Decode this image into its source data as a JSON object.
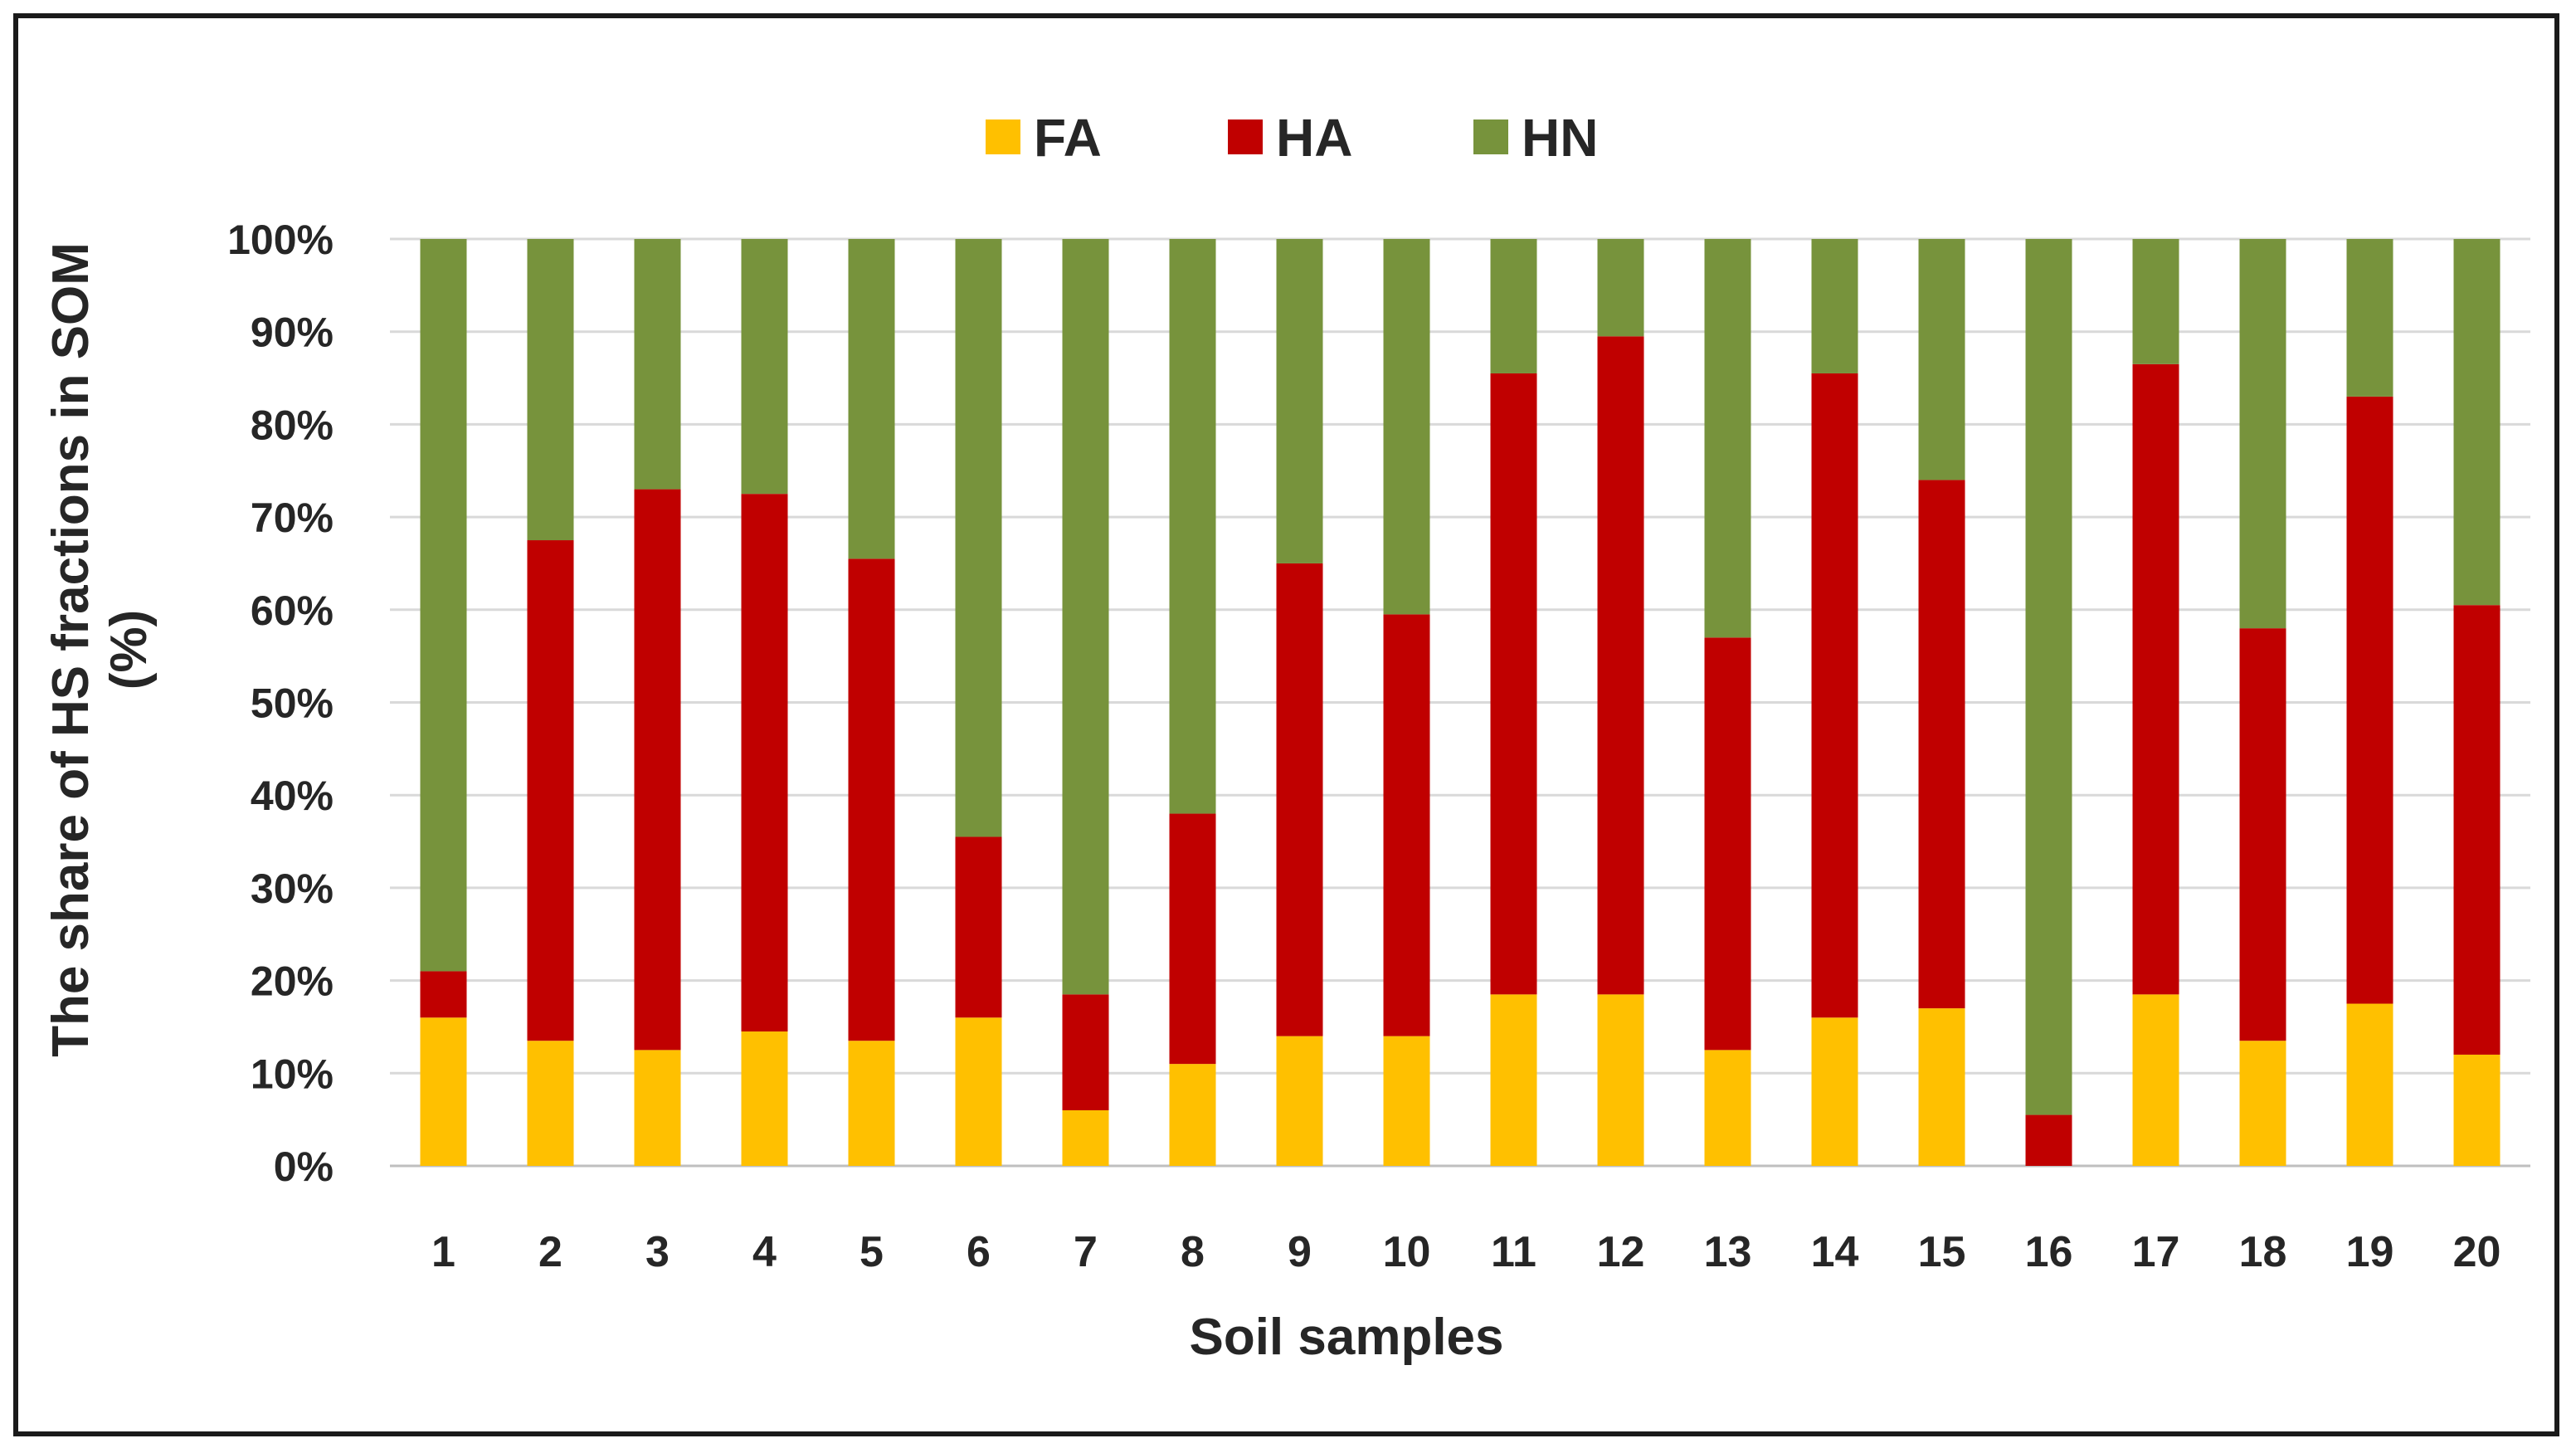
{
  "chart_data": {
    "type": "bar",
    "stacked": true,
    "percent_stacked": true,
    "title": "",
    "xlabel": "Soil samples",
    "ylabel": "The share of HS fractions in SOM (%)",
    "ylabel_lines": [
      "The share of HS fractions in SOM",
      "(%)"
    ],
    "ylim": [
      0,
      100
    ],
    "ytick_values": [
      0,
      10,
      20,
      30,
      40,
      50,
      60,
      70,
      80,
      90,
      100
    ],
    "ytick_labels": [
      "0%",
      "10%",
      "20%",
      "30%",
      "40%",
      "50%",
      "60%",
      "70%",
      "80%",
      "90%",
      "100%"
    ],
    "grid": true,
    "legend_position": "top-center",
    "categories": [
      "1",
      "2",
      "3",
      "4",
      "5",
      "6",
      "7",
      "8",
      "9",
      "10",
      "11",
      "12",
      "13",
      "14",
      "15",
      "16",
      "17",
      "18",
      "19",
      "20"
    ],
    "series": [
      {
        "name": "FA",
        "color": "#ffc000",
        "values": [
          16,
          13.5,
          12.5,
          14.5,
          13.5,
          16,
          6,
          11,
          14,
          14,
          18.5,
          18.5,
          12.5,
          16,
          17,
          0,
          18.5,
          13.5,
          17.5,
          12
        ]
      },
      {
        "name": "HA",
        "color": "#c00000",
        "values": [
          5,
          54,
          60.5,
          58,
          52,
          19.5,
          12.5,
          27,
          51,
          45.5,
          67,
          71,
          44.5,
          69.5,
          57,
          5.5,
          68,
          44.5,
          65.5,
          48.5
        ]
      },
      {
        "name": "HN",
        "color": "#77933c",
        "values": [
          79,
          32.5,
          27,
          27.5,
          34.5,
          64.5,
          81.5,
          62,
          35,
          40.5,
          14.5,
          10.5,
          43,
          14.5,
          26,
          94.5,
          13.5,
          42,
          17,
          39.5
        ]
      }
    ]
  }
}
